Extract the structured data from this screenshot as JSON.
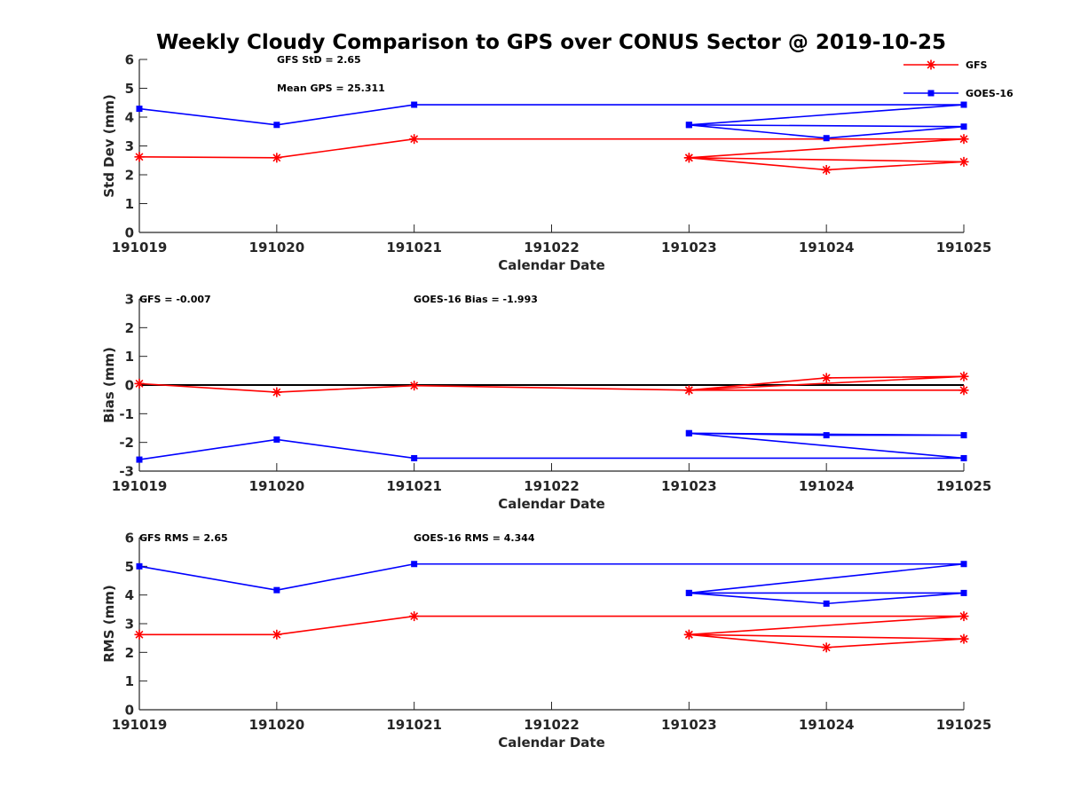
{
  "figure": {
    "title": "Weekly Cloudy Comparison to GPS over CONUS Sector @ 2019-10-25"
  },
  "legend": {
    "placement": "top-right",
    "entries": [
      {
        "label": "GFS",
        "color": "#ff0000",
        "marker": "asterisk"
      },
      {
        "label": "GOES-16",
        "color": "#0000ff",
        "marker": "square"
      }
    ]
  },
  "chart_data": [
    {
      "type": "line",
      "xlabel": "Calendar Date",
      "ylabel": "Std Dev (mm)",
      "ylim": [
        0,
        6
      ],
      "yticks": [
        0,
        1,
        2,
        3,
        4,
        5,
        6
      ],
      "xticks": [
        "191019",
        "191020",
        "191021",
        "191022",
        "191023",
        "191024",
        "191025"
      ],
      "grid": false,
      "annotations": [
        {
          "text": "GFS StD = 2.65",
          "x": "191020",
          "y": 6
        },
        {
          "text": "Mean GPS = 25.311",
          "x": "191020",
          "y": 5
        }
      ],
      "series": [
        {
          "name": "GFS",
          "color": "#ff0000",
          "marker": "asterisk",
          "x": [
            "191019",
            "191020",
            "191021",
            "191025",
            "191023",
            "191024",
            "191025",
            "191023"
          ],
          "values": [
            2.62,
            2.59,
            3.24,
            3.24,
            2.59,
            2.17,
            2.45,
            2.59
          ]
        },
        {
          "name": "GOES-16",
          "color": "#0000ff",
          "marker": "square",
          "x": [
            "191019",
            "191020",
            "191021",
            "191025",
            "191023",
            "191024",
            "191025",
            "191023"
          ],
          "values": [
            4.29,
            3.73,
            4.43,
            4.43,
            3.73,
            3.27,
            3.67,
            3.73
          ]
        }
      ]
    },
    {
      "type": "line",
      "xlabel": "Calendar Date",
      "ylabel": "Bias (mm)",
      "ylim": [
        -3,
        3
      ],
      "yticks": [
        -3,
        -2,
        -1,
        0,
        1,
        2,
        3
      ],
      "xticks": [
        "191019",
        "191020",
        "191021",
        "191022",
        "191023",
        "191024",
        "191025"
      ],
      "grid": false,
      "zero_line": true,
      "annotations": [
        {
          "text": "GFS = -0.007",
          "x": "191019",
          "y": 3
        },
        {
          "text": "GOES-16 Bias  = -1.993",
          "x": "191021",
          "y": 3
        }
      ],
      "series": [
        {
          "name": "GFS",
          "color": "#ff0000",
          "marker": "asterisk",
          "x": [
            "191019",
            "191020",
            "191021",
            "191023",
            "191024",
            "191025",
            "191023",
            "191025"
          ],
          "values": [
            0.05,
            -0.25,
            -0.02,
            -0.18,
            0.25,
            0.3,
            -0.18,
            -0.18
          ]
        },
        {
          "name": "GOES-16",
          "color": "#0000ff",
          "marker": "square",
          "x": [
            "191019",
            "191020",
            "191021",
            "191025",
            "191023",
            "191024",
            "191025",
            "191023"
          ],
          "values": [
            -2.6,
            -1.9,
            -2.55,
            -2.55,
            -1.68,
            -1.75,
            -1.75,
            -1.68
          ]
        }
      ]
    },
    {
      "type": "line",
      "xlabel": "Calendar Date",
      "ylabel": "RMS (mm)",
      "ylim": [
        0,
        6
      ],
      "yticks": [
        0,
        1,
        2,
        3,
        4,
        5,
        6
      ],
      "xticks": [
        "191019",
        "191020",
        "191021",
        "191022",
        "191023",
        "191024",
        "191025"
      ],
      "grid": false,
      "annotations": [
        {
          "text": "GFS RMS = 2.65",
          "x": "191019",
          "y": 6
        },
        {
          "text": "GOES-16 RMS = 4.344",
          "x": "191021",
          "y": 6
        }
      ],
      "series": [
        {
          "name": "GFS",
          "color": "#ff0000",
          "marker": "asterisk",
          "x": [
            "191019",
            "191020",
            "191021",
            "191025",
            "191023",
            "191024",
            "191025",
            "191023"
          ],
          "values": [
            2.62,
            2.62,
            3.26,
            3.26,
            2.62,
            2.17,
            2.47,
            2.62
          ]
        },
        {
          "name": "GOES-16",
          "color": "#0000ff",
          "marker": "square",
          "x": [
            "191019",
            "191020",
            "191021",
            "191025",
            "191023",
            "191024",
            "191025",
            "191023"
          ],
          "values": [
            5.0,
            4.17,
            5.08,
            5.08,
            4.07,
            3.7,
            4.07,
            4.07
          ]
        }
      ]
    }
  ]
}
